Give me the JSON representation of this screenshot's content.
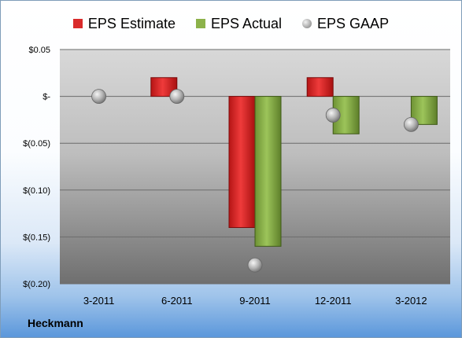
{
  "company": "Heckmann",
  "colors": {
    "estimate": "#d92b2b",
    "actual": "#8cb24a",
    "gaap": "#a9a9a9"
  },
  "chart_data": {
    "type": "bar",
    "categories": [
      "3-2011",
      "6-2011",
      "9-2011",
      "12-2011",
      "3-2012"
    ],
    "series": [
      {
        "name": "EPS Estimate",
        "values": [
          null,
          0.02,
          -0.14,
          0.02,
          null
        ]
      },
      {
        "name": "EPS Actual",
        "values": [
          null,
          null,
          -0.16,
          -0.04,
          -0.03
        ]
      },
      {
        "name": "EPS GAAP",
        "type": "scatter",
        "values": [
          0.0,
          0.0,
          -0.18,
          -0.02,
          -0.03
        ]
      }
    ],
    "ylim": [
      -0.2,
      0.05
    ],
    "yticks": [
      0.05,
      0.0,
      -0.05,
      -0.1,
      -0.15,
      -0.2
    ],
    "ytick_labels": [
      "$0.05",
      "$-",
      "$(0.05)",
      "$(0.10)",
      "$(0.15)",
      "$(0.20)"
    ],
    "legend": "top",
    "grid": true
  }
}
